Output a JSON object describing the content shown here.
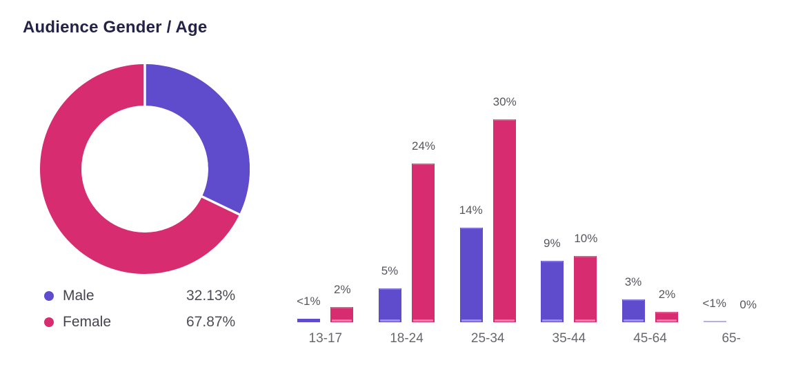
{
  "header": {
    "title": "Audience Gender / Age"
  },
  "colors": {
    "male": "#5E4CCD",
    "female": "#D72C6F",
    "title_text": "#232247",
    "value_label_text": "#55565E",
    "category_label_text": "#67686E",
    "background": "#FFFFFF"
  },
  "legend": {
    "items": [
      {
        "name": "Male",
        "value_label": "32.13%"
      },
      {
        "name": "Female",
        "value_label": "67.87%"
      }
    ]
  },
  "chart_data": [
    {
      "type": "pie",
      "subtype": "donut",
      "title": "Audience Gender / Age",
      "start_angle": "12-oclock",
      "direction": "clockwise",
      "legend_position": "bottom-left",
      "slices": [
        {
          "label": "Male",
          "value": 32.13,
          "display": "32.13%",
          "color": "#5E4CCD"
        },
        {
          "label": "Female",
          "value": 67.87,
          "display": "67.87%",
          "color": "#D72C6F"
        }
      ]
    },
    {
      "type": "bar",
      "subtype": "grouped",
      "categories": [
        "13-17",
        "18-24",
        "25-34",
        "35-44",
        "45-64",
        "65-"
      ],
      "series": [
        {
          "name": "Male",
          "color": "#5E4CCD",
          "values": [
            0.5,
            5,
            14,
            9.1,
            3.4,
            0.2
          ],
          "labels": [
            "<1%",
            "5%",
            "14%",
            "9%",
            "3%",
            "<1%"
          ]
        },
        {
          "name": "Female",
          "color": "#D72C6F",
          "values": [
            2.2,
            23.5,
            30,
            9.8,
            1.5,
            0
          ],
          "labels": [
            "2%",
            "24%",
            "30%",
            "10%",
            "2%",
            "0%"
          ]
        }
      ],
      "ylim": [
        0,
        30
      ],
      "grid": false,
      "axis_lines": false,
      "value_labels": "above-bars"
    }
  ]
}
